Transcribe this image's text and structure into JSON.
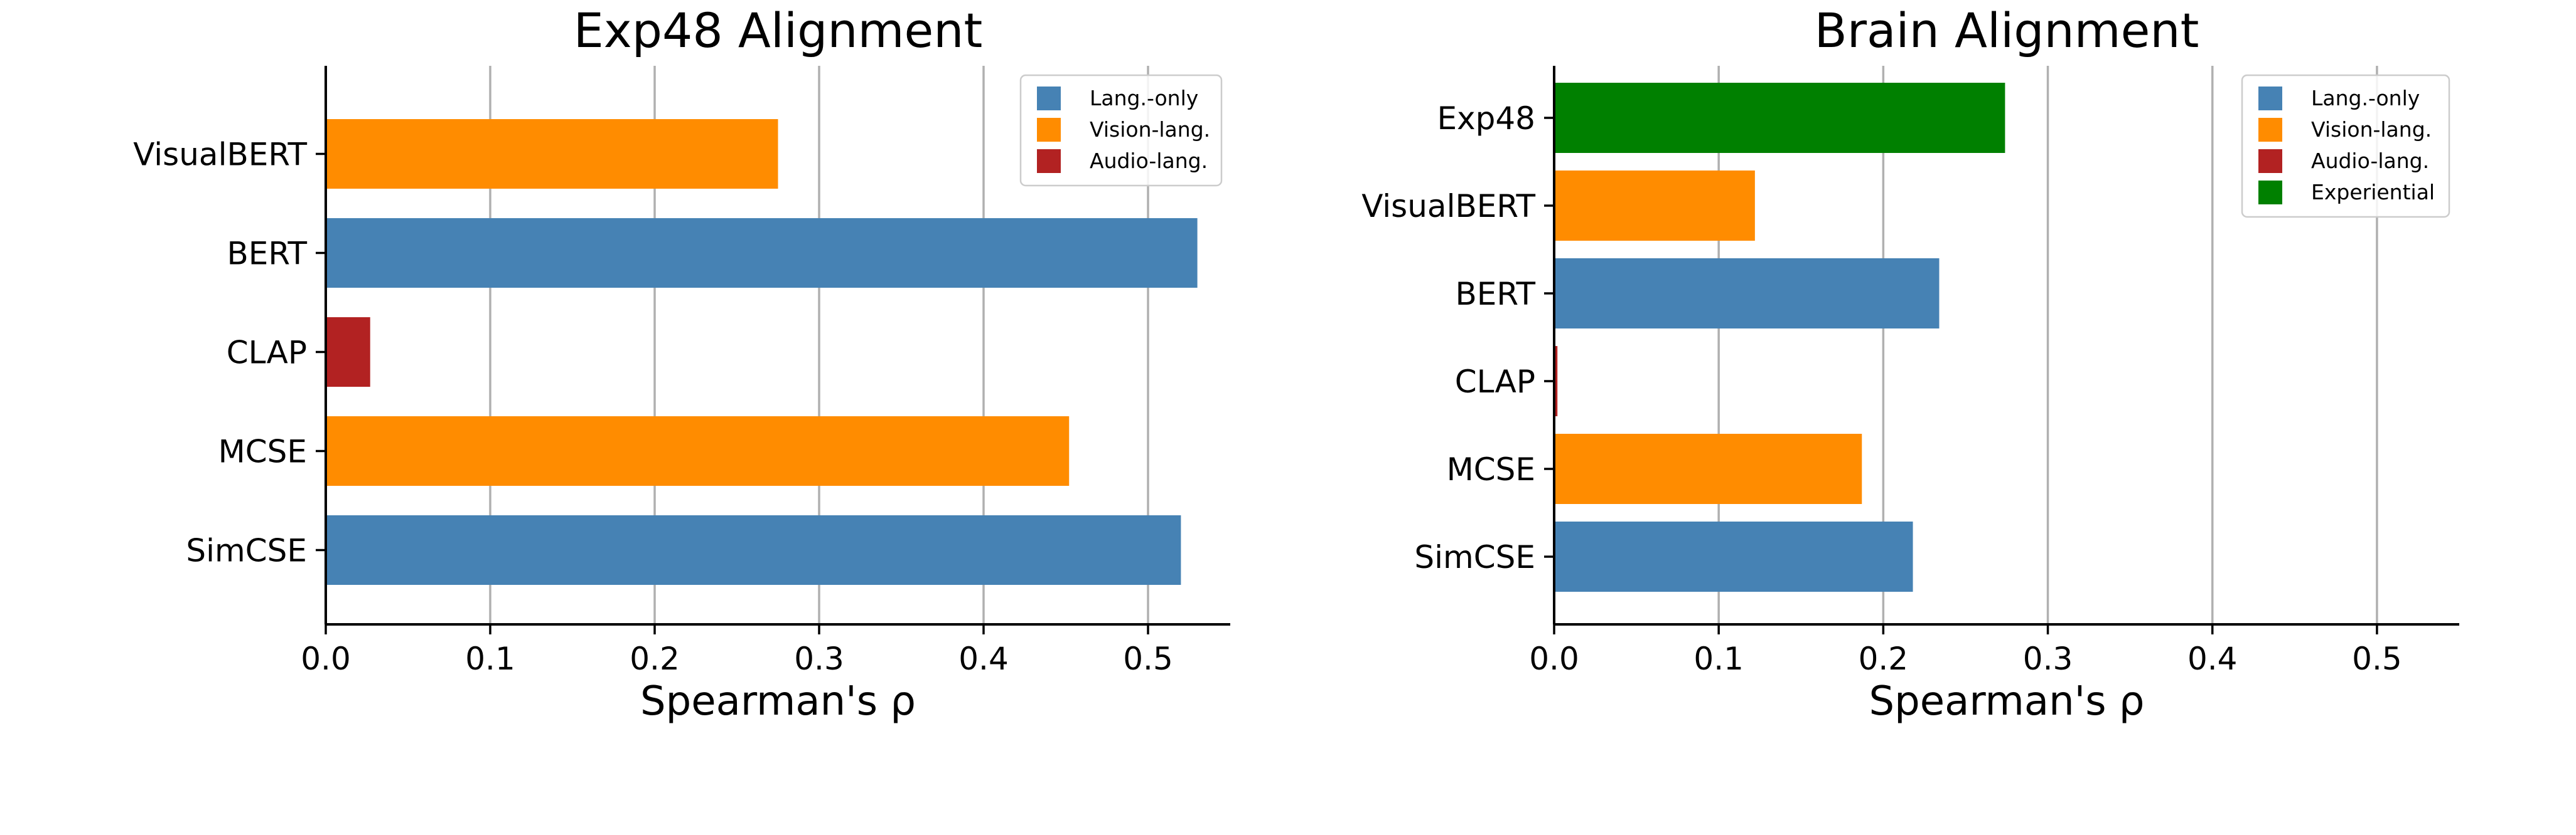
{
  "chart_data": [
    {
      "type": "bar",
      "orientation": "horizontal",
      "title": "Exp48 Alignment",
      "xlabel": "Spearman's ρ",
      "ylabel": "",
      "xlim": [
        0,
        0.55
      ],
      "x_ticks": [
        "0.0",
        "0.1",
        "0.2",
        "0.3",
        "0.4",
        "0.5"
      ],
      "grid": "x",
      "legend_position": "top-right",
      "legend": [
        {
          "label": "Lang.-only",
          "color": "#4682b4"
        },
        {
          "label": "Vision-lang.",
          "color": "#ff8c00"
        },
        {
          "label": "Audio-lang.",
          "color": "#b22222"
        }
      ],
      "categories": [
        "VisualBERT",
        "BERT",
        "CLAP",
        "MCSE",
        "SimCSE"
      ],
      "values": [
        0.275,
        0.53,
        0.027,
        0.452,
        0.52
      ],
      "bar_groups": [
        "Vision-lang.",
        "Lang.-only",
        "Audio-lang.",
        "Vision-lang.",
        "Lang.-only"
      ]
    },
    {
      "type": "bar",
      "orientation": "horizontal",
      "title": "Brain Alignment",
      "xlabel": "Spearman's ρ",
      "ylabel": "",
      "xlim": [
        0,
        0.55
      ],
      "x_ticks": [
        "0.0",
        "0.1",
        "0.2",
        "0.3",
        "0.4",
        "0.5"
      ],
      "grid": "x",
      "legend_position": "top-right",
      "legend": [
        {
          "label": "Lang.-only",
          "color": "#4682b4"
        },
        {
          "label": "Vision-lang.",
          "color": "#ff8c00"
        },
        {
          "label": "Audio-lang.",
          "color": "#b22222"
        },
        {
          "label": "Experiential",
          "color": "#008000"
        }
      ],
      "categories": [
        "Exp48",
        "VisualBERT",
        "BERT",
        "CLAP",
        "MCSE",
        "SimCSE"
      ],
      "values": [
        0.274,
        0.122,
        0.234,
        0.002,
        0.187,
        0.218
      ],
      "bar_groups": [
        "Experiential",
        "Vision-lang.",
        "Lang.-only",
        "Audio-lang.",
        "Vision-lang.",
        "Lang.-only"
      ]
    }
  ]
}
